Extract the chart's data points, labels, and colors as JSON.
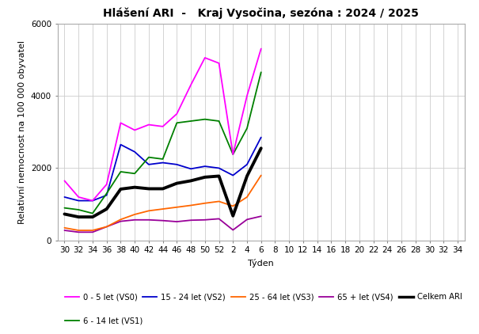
{
  "title": "Hlášení ARI  -   Kraj Vysočina, sezóna : 2024 / 2025",
  "ylabel": "Relativní nemocnost na 100 000 obyvatel",
  "xlabel": "Týden",
  "ylim": [
    0,
    6000
  ],
  "yticks": [
    0,
    2000,
    4000,
    6000
  ],
  "x_labels": [
    "30",
    "32",
    "34",
    "36",
    "38",
    "40",
    "42",
    "44",
    "46",
    "48",
    "50",
    "52",
    "2",
    "4",
    "6",
    "8",
    "10",
    "12",
    "14",
    "16",
    "18",
    "20",
    "22",
    "24",
    "26",
    "28",
    "30",
    "32",
    "34"
  ],
  "series": {
    "VS0": {
      "label": "0 - 5 let (VS0)",
      "color": "#ff00ff",
      "lw": 1.3,
      "values": [
        1650,
        1200,
        1100,
        1550,
        3250,
        3050,
        3200,
        3150,
        3500,
        4300,
        5050,
        4900,
        2380,
        4000,
        5300,
        null,
        null,
        null,
        null,
        null,
        null,
        null,
        null,
        null,
        null,
        null,
        null,
        null,
        null
      ]
    },
    "VS1": {
      "label": "6 - 14 let (VS1)",
      "color": "#008000",
      "lw": 1.3,
      "values": [
        900,
        850,
        750,
        1300,
        1900,
        1850,
        2300,
        2250,
        3250,
        3300,
        3350,
        3300,
        2380,
        3100,
        4650,
        null,
        null,
        null,
        null,
        null,
        null,
        null,
        null,
        null,
        null,
        null,
        null,
        null,
        null
      ]
    },
    "VS2": {
      "label": "15 - 24 let (VS2)",
      "color": "#0000cc",
      "lw": 1.3,
      "values": [
        1200,
        1100,
        1100,
        1250,
        2650,
        2450,
        2100,
        2150,
        2100,
        1980,
        2050,
        2000,
        1800,
        2100,
        2850,
        null,
        null,
        null,
        null,
        null,
        null,
        null,
        null,
        null,
        null,
        null,
        null,
        null,
        null
      ]
    },
    "VS3": {
      "label": "25 - 64 let (VS3)",
      "color": "#ff6600",
      "lw": 1.3,
      "values": [
        350,
        280,
        280,
        380,
        580,
        720,
        820,
        870,
        920,
        970,
        1030,
        1080,
        950,
        1200,
        1800,
        null,
        null,
        null,
        null,
        null,
        null,
        null,
        null,
        null,
        null,
        null,
        null,
        null,
        null
      ]
    },
    "VS4": {
      "label": "65 + let (VS4)",
      "color": "#990099",
      "lw": 1.3,
      "values": [
        280,
        230,
        230,
        380,
        530,
        570,
        570,
        550,
        520,
        560,
        570,
        600,
        290,
        580,
        670,
        null,
        null,
        null,
        null,
        null,
        null,
        null,
        null,
        null,
        null,
        null,
        null,
        null,
        null
      ]
    },
    "ARI": {
      "label": "Celkem ARI",
      "color": "#000000",
      "lw": 2.8,
      "values": [
        730,
        650,
        650,
        870,
        1420,
        1470,
        1430,
        1430,
        1580,
        1650,
        1750,
        1780,
        680,
        1780,
        2550,
        null,
        null,
        null,
        null,
        null,
        null,
        null,
        null,
        null,
        null,
        null,
        null,
        null,
        null
      ]
    }
  },
  "background_color": "#ffffff",
  "grid_color": "#cccccc",
  "title_fontsize": 10,
  "label_fontsize": 8,
  "tick_fontsize": 7.5
}
